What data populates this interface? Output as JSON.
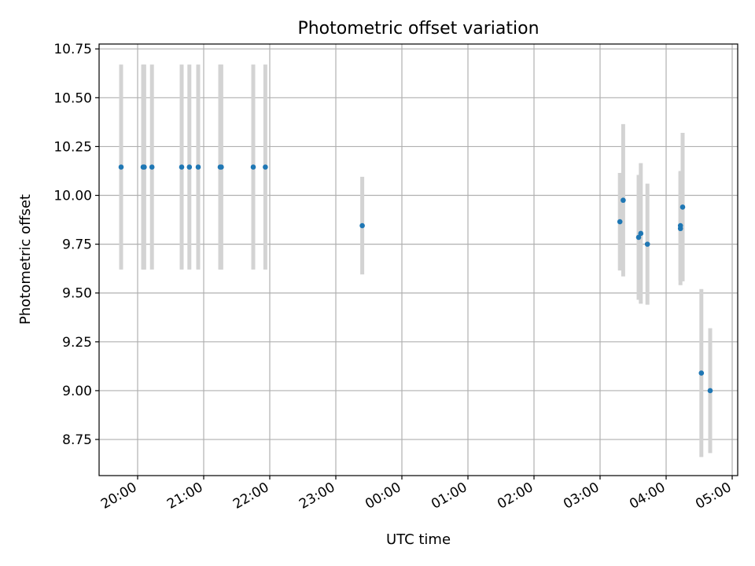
{
  "chart_data": {
    "type": "scatter",
    "title": "Photometric offset variation",
    "xlabel": "UTC time",
    "ylabel": "Photometric offset",
    "x_is_time": true,
    "xlim": [
      "19:25",
      "05:05"
    ],
    "ylim": [
      8.565,
      10.775
    ],
    "x_ticks": [
      "20:00",
      "21:00",
      "22:00",
      "23:00",
      "00:00",
      "01:00",
      "02:00",
      "03:00",
      "04:00",
      "05:00"
    ],
    "y_ticks": [
      "8.75",
      "9.00",
      "9.25",
      "9.50",
      "9.75",
      "10.00",
      "10.25",
      "10.50",
      "10.75"
    ],
    "grid": true,
    "point_color": "#1f77b4",
    "errorbar_color": "#d3d3d3",
    "points": [
      {
        "x": "19:45",
        "y": 10.145,
        "yerr": 0.525
      },
      {
        "x": "20:05",
        "y": 10.145,
        "yerr": 0.525
      },
      {
        "x": "20:06",
        "y": 10.145,
        "yerr": 0.525
      },
      {
        "x": "20:13",
        "y": 10.145,
        "yerr": 0.525
      },
      {
        "x": "20:40",
        "y": 10.145,
        "yerr": 0.525
      },
      {
        "x": "20:47",
        "y": 10.145,
        "yerr": 0.525
      },
      {
        "x": "20:55",
        "y": 10.145,
        "yerr": 0.525
      },
      {
        "x": "21:15",
        "y": 10.145,
        "yerr": 0.525
      },
      {
        "x": "21:16",
        "y": 10.145,
        "yerr": 0.525
      },
      {
        "x": "21:45",
        "y": 10.145,
        "yerr": 0.525
      },
      {
        "x": "21:56",
        "y": 10.145,
        "yerr": 0.525
      },
      {
        "x": "23:24",
        "y": 9.845,
        "yerr": 0.25
      },
      {
        "x": "03:18",
        "y": 9.865,
        "yerr": 0.25
      },
      {
        "x": "03:21",
        "y": 9.975,
        "yerr": 0.39
      },
      {
        "x": "03:35",
        "y": 9.785,
        "yerr": 0.32
      },
      {
        "x": "03:37",
        "y": 9.805,
        "yerr": 0.36
      },
      {
        "x": "03:43",
        "y": 9.75,
        "yerr": 0.31
      },
      {
        "x": "04:13",
        "y": 9.83,
        "yerr": 0.29
      },
      {
        "x": "04:13",
        "y": 9.845,
        "yerr": 0.28
      },
      {
        "x": "04:15",
        "y": 9.94,
        "yerr": 0.38
      },
      {
        "x": "04:32",
        "y": 9.09,
        "yerr": 0.43
      },
      {
        "x": "04:40",
        "y": 9.0,
        "yerr": 0.32
      }
    ]
  }
}
